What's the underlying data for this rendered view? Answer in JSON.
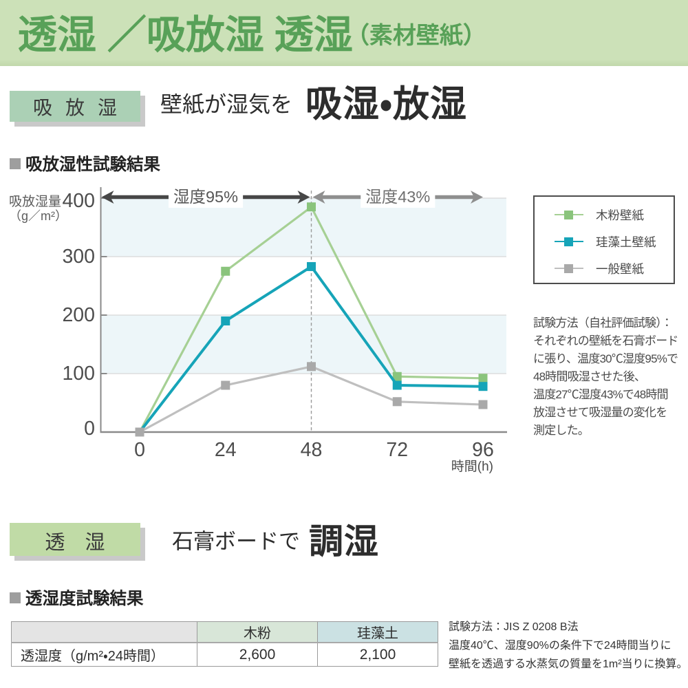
{
  "header": {
    "title_main": "透湿 ／吸放湿",
    "title_product": "透湿",
    "title_sub": "（素材壁紙）",
    "bg_color": "#cce1b8",
    "text_color": "#58a158"
  },
  "section_absorption": {
    "badge": "吸放湿",
    "heading_lead": "壁紙が湿気を",
    "heading_emph": "吸湿・放湿",
    "subheading": "吸放湿性試験結果",
    "note_lines": [
      "試験方法（自社評価試験）：",
      "それぞれの壁紙を石膏ボード",
      "に張り、温度30℃湿度95%で",
      "48時間吸湿させた後、",
      "温度27℃湿度43%で48時間",
      "放湿させて吸湿量の変化を",
      "測定した。"
    ]
  },
  "chart_data": {
    "type": "line",
    "title": "吸放湿性試験結果",
    "x": [
      0,
      24,
      48,
      72,
      96
    ],
    "x_tick_labels": [
      "0",
      "24",
      "48",
      "72",
      "96"
    ],
    "xlabel": "時間(h)",
    "ylabel_line1": "吸放湿量",
    "ylabel_line2": "（g／m²）",
    "y_ticks": [
      0,
      100,
      200,
      300,
      400
    ],
    "ylim": [
      0,
      400
    ],
    "xlim": [
      0,
      96
    ],
    "grid": true,
    "band_color": "#edf6f9",
    "legend_position": "right",
    "series": [
      {
        "name": "木粉壁紙",
        "line_color": "#a6d094",
        "marker_color": "#8ac47c",
        "values": [
          0,
          275,
          385,
          95,
          92
        ]
      },
      {
        "name": "珪藻土壁紙",
        "line_color": "#16a4b8",
        "marker_color": "#16a4b8",
        "values": [
          0,
          190,
          283,
          80,
          78
        ]
      },
      {
        "name": "一般壁紙",
        "line_color": "#bfbfbf",
        "marker_color": "#a9a9a9",
        "values": [
          0,
          80,
          112,
          52,
          47
        ]
      }
    ],
    "phases": [
      {
        "label": "湿度95%",
        "from": 0,
        "to": 48,
        "arrow_color": "#474747",
        "label_color": "#555555"
      },
      {
        "label": "湿度43%",
        "from": 48,
        "to": 96,
        "arrow_color": "#8f8f8f",
        "label_color": "#707070"
      }
    ],
    "divider_x": 48
  },
  "section_permeability": {
    "badge": "透 湿",
    "heading_lead": "石膏ボードで",
    "heading_emph": "調湿",
    "subheading": "透湿度試験結果",
    "note_lines": [
      "試験方法：JIS Z 0208 B法",
      "温度40℃、湿度90%の条件下で24時間当りに",
      "壁紙を透過する水蒸気の質量を1m²当りに換算。"
    ]
  },
  "table": {
    "row_label": "透湿度（g/m²・24時間）",
    "col_headers": [
      "木粉",
      "珪藻土"
    ],
    "values": [
      "2,600",
      "2,100"
    ],
    "label_header_color": "#e4e4e4",
    "wood_header_color": "#d8e6d8",
    "diatom_header_color": "#cbe1e3"
  }
}
